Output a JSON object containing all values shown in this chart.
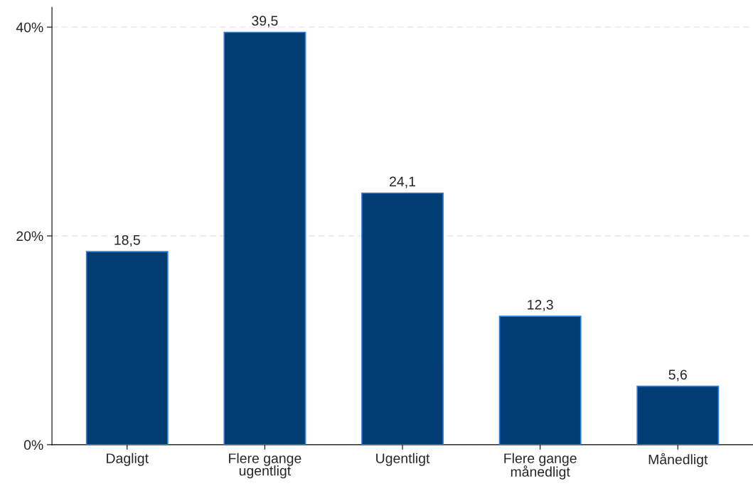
{
  "chart_data": {
    "type": "bar",
    "categories": [
      "Dagligt",
      "Flere gange\nugentligt",
      "Ugentligt",
      "Flere gange\nmånedligt",
      "Månedligt"
    ],
    "values": [
      18.5,
      39.5,
      24.1,
      12.3,
      5.6
    ],
    "value_labels": [
      "18,5",
      "39,5",
      "24,1",
      "12,3",
      "5,6"
    ],
    "color": "#003d73",
    "ylim": [
      0,
      41.9
    ],
    "yticks": [
      {
        "value": 0,
        "label": "0%"
      },
      {
        "value": 20,
        "label": "20%"
      },
      {
        "value": 40,
        "label": "40%"
      }
    ],
    "grid": "y",
    "legend": false
  }
}
